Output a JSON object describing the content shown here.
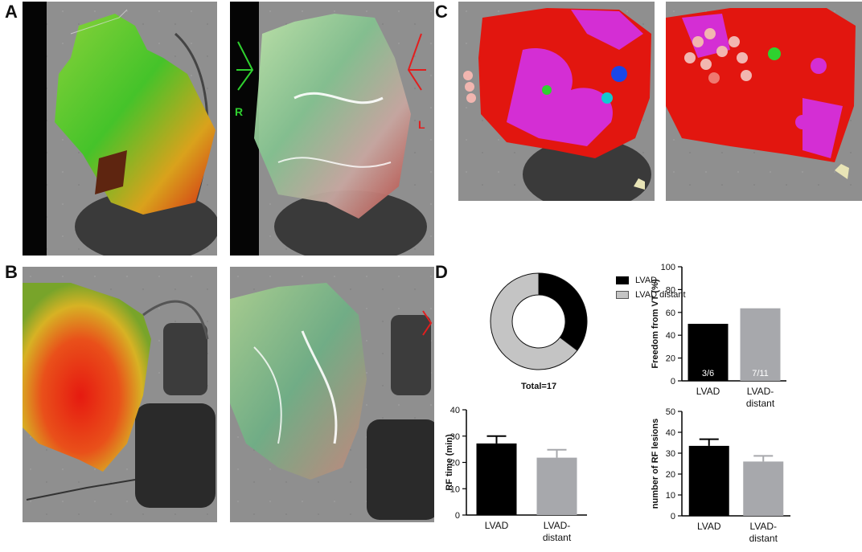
{
  "panels": {
    "a": "A",
    "b": "B",
    "c": "C",
    "d": "D"
  },
  "image_overlay_labels": {
    "orientation_right": "R",
    "orientation_left": "L"
  },
  "colors": {
    "lvad": "#000000",
    "lvad_distant": "#a7a8ac",
    "donut_lvad": "#000000",
    "donut_distant": "#c4c4c4"
  },
  "chart_data": [
    {
      "type": "pie",
      "subtype": "donut",
      "labels": [
        "LVAD",
        "LVAD distant"
      ],
      "values": [
        6,
        11
      ],
      "annotation": "Total=17",
      "legend_position": "right"
    },
    {
      "type": "bar",
      "categories": [
        "LVAD",
        "LVAD-\ndistant"
      ],
      "values": [
        50,
        63.6
      ],
      "bar_labels": [
        "3/6",
        "7/11"
      ],
      "ylabel": "Freedom from VT (%)",
      "ylim": [
        0,
        100
      ],
      "yticks": [
        0,
        20,
        40,
        60,
        80,
        100
      ]
    },
    {
      "type": "bar",
      "categories": [
        "LVAD",
        "LVAD-\ndistant"
      ],
      "values": [
        27.2,
        21.8
      ],
      "errors": [
        2.8,
        3.0
      ],
      "ylabel": "RF time (min)",
      "ylim": [
        0,
        40
      ],
      "yticks": [
        0,
        10,
        20,
        30,
        40
      ]
    },
    {
      "type": "bar",
      "categories": [
        "LVAD",
        "LVAD-\ndistant"
      ],
      "values": [
        33.5,
        26
      ],
      "errors": [
        3.2,
        2.7
      ],
      "ylabel": "number of RF lesions",
      "ylim": [
        0,
        50
      ],
      "yticks": [
        0,
        10,
        20,
        30,
        40,
        50
      ]
    }
  ]
}
